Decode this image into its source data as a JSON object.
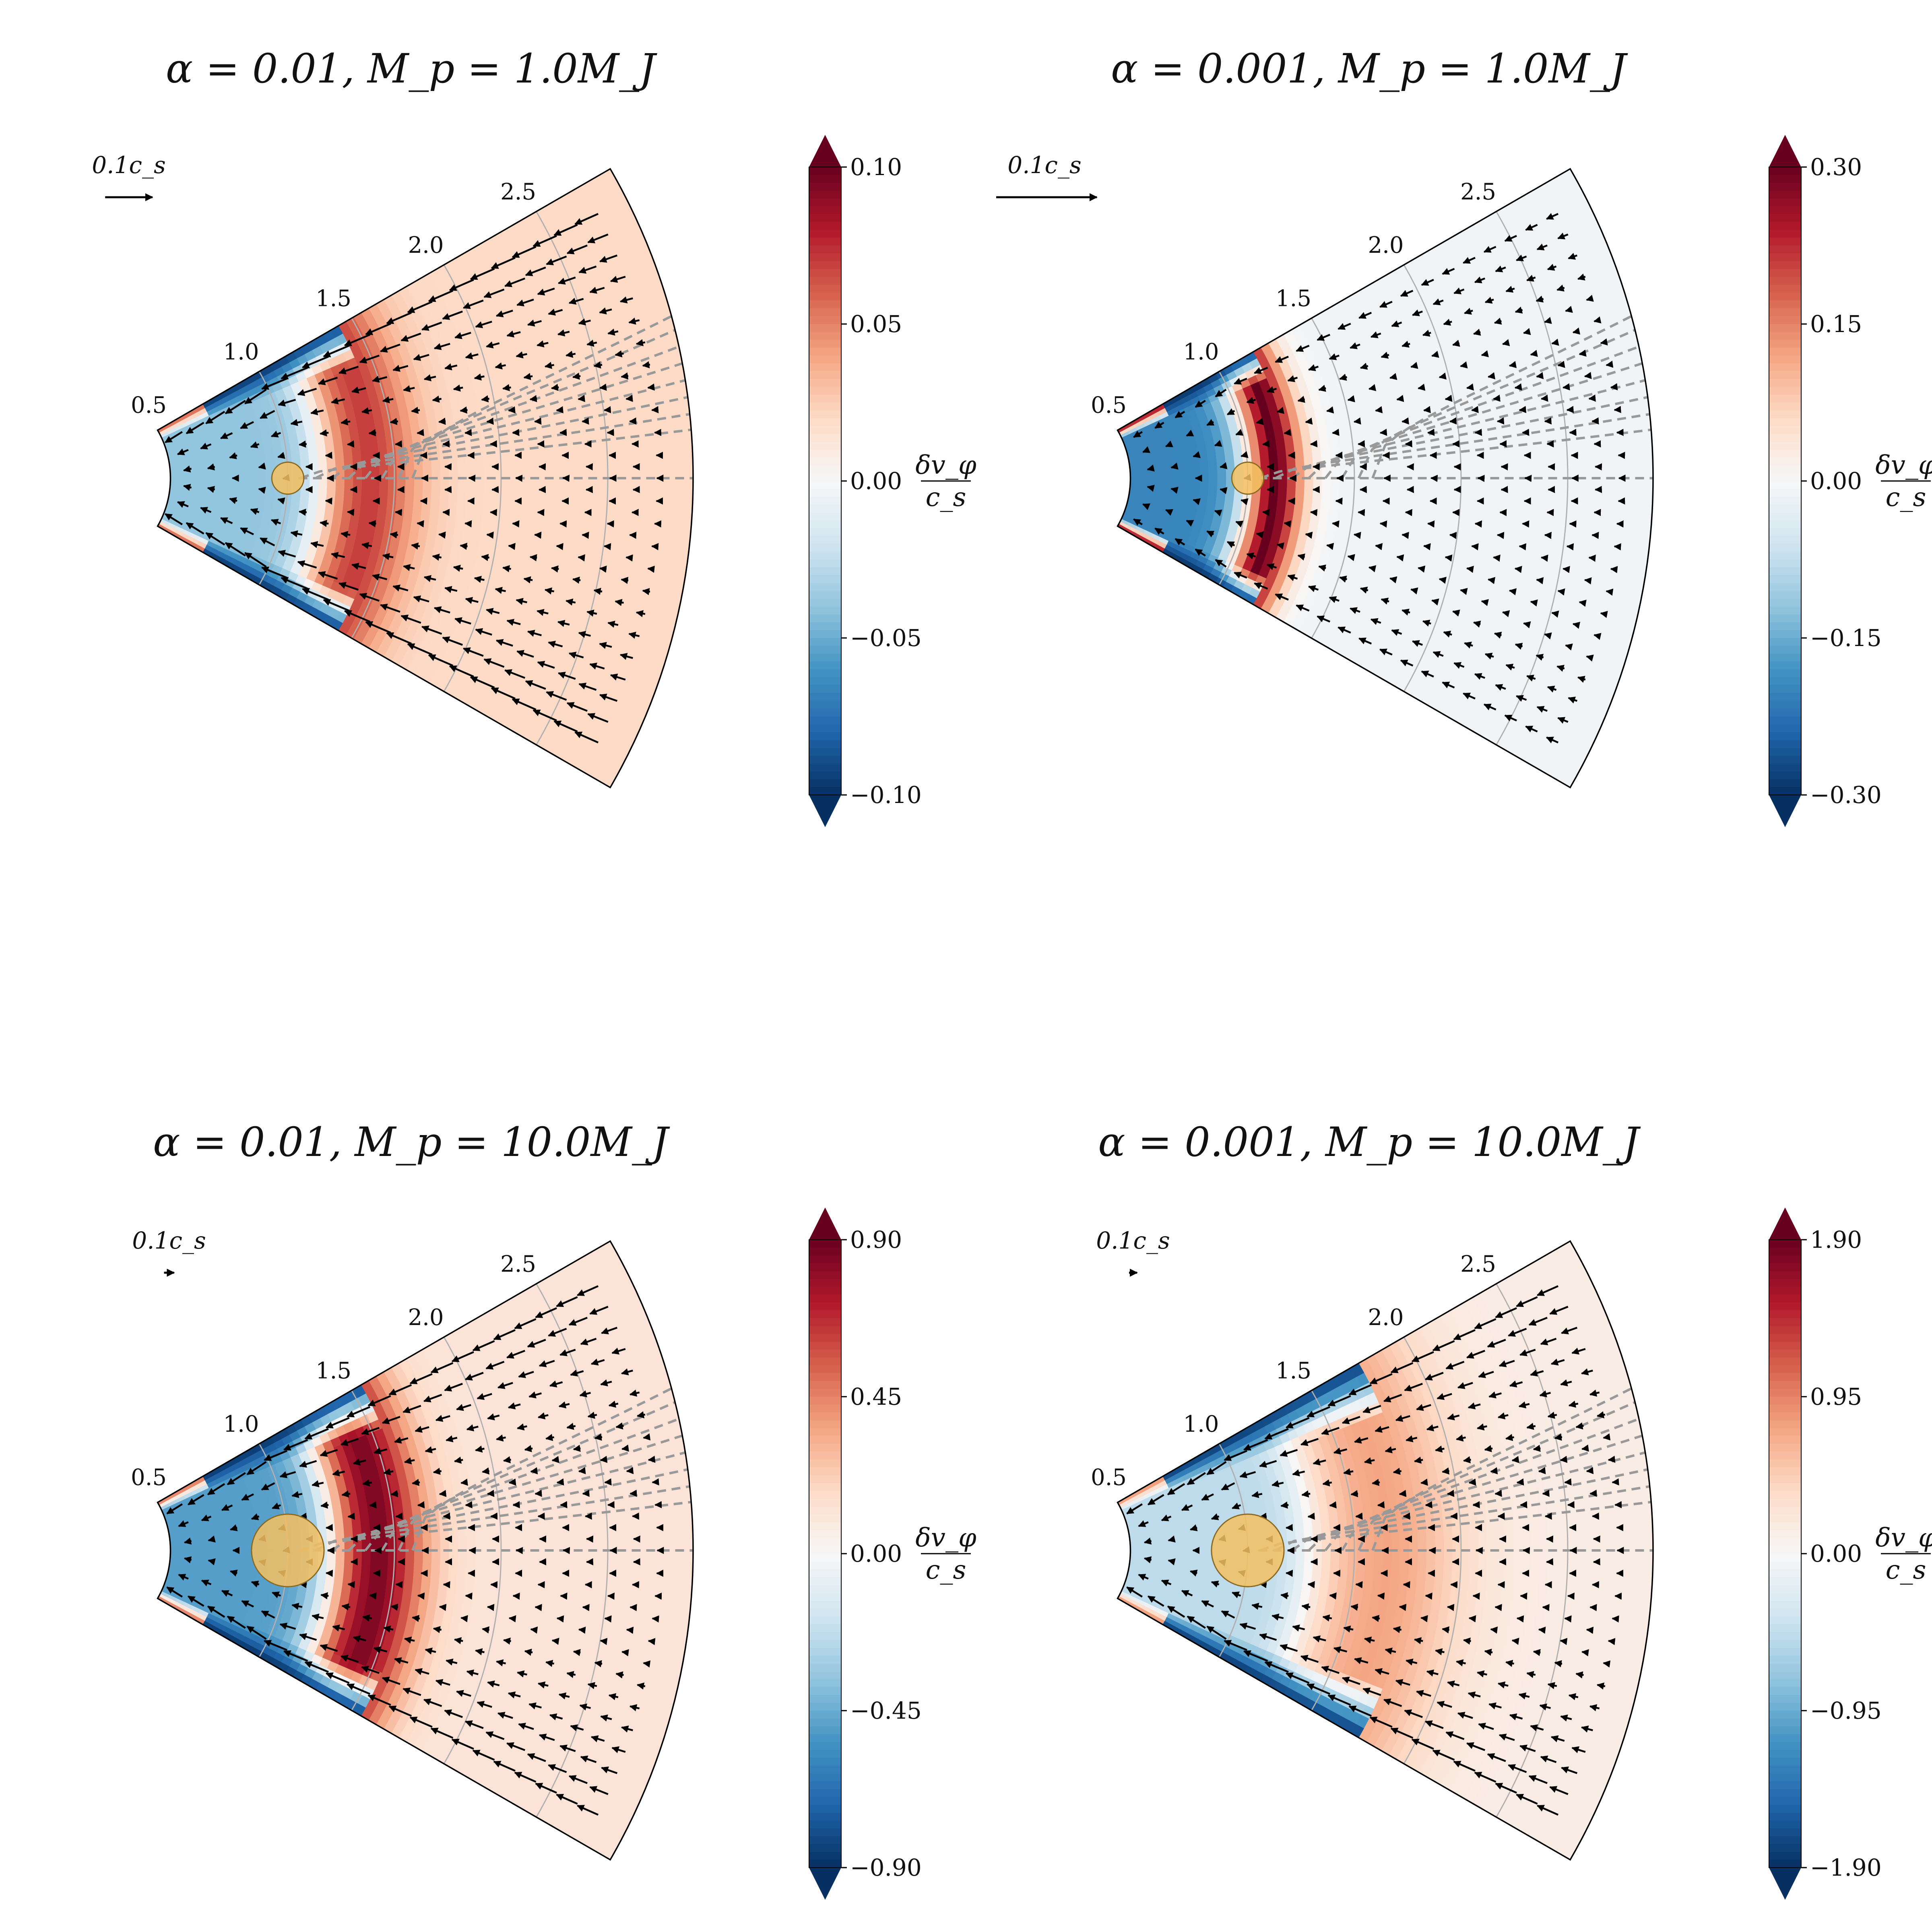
{
  "chart_data": [
    {
      "type": "heatmap",
      "title": "α = 0.01,  M_p = 1.0M_J",
      "subplot": "top-left",
      "radial_tick_labels": [
        "0.5",
        "1.0",
        "1.5",
        "2.0",
        "2.5"
      ],
      "colorbar": {
        "label_num": "δv_φ",
        "label_den": "c_s",
        "ticks": [
          "0.10",
          "0.05",
          "0.00",
          "−0.05",
          "−0.10"
        ],
        "range": [
          -0.1,
          0.1
        ],
        "colormap": "RdBu_r",
        "extend": "both"
      },
      "quiver_key_label": "0.1c_s",
      "planet": {
        "r": 1.0,
        "theta": 0.0,
        "color": "#f5c060"
      },
      "field": {
        "peak_pos": 0.07,
        "peak_r_center": 1.38,
        "peak_r_width": 0.22,
        "far_pos": 0.02,
        "neg_inner": -0.04,
        "edge_neg": -0.1,
        "edge_r_max": 1.45,
        "edge_pos_inner": 0.07
      },
      "arrows": {
        "style": "inflow-along-edges",
        "scale": 1.0
      }
    },
    {
      "type": "heatmap",
      "title": "α = 0.001,  M_p = 1.0M_J",
      "subplot": "top-right",
      "radial_tick_labels": [
        "0.5",
        "1.0",
        "1.5",
        "2.0",
        "2.5"
      ],
      "colorbar": {
        "label_num": "δv_φ",
        "label_den": "c_s",
        "ticks": [
          "0.30",
          "0.15",
          "0.00",
          "−0.15",
          "−0.30"
        ],
        "range": [
          -0.3,
          0.3
        ],
        "colormap": "RdBu_r",
        "extend": "both"
      },
      "quiver_key_label": "0.1c_s",
      "planet": {
        "r": 1.0,
        "theta": 0.0,
        "color": "#f5c060"
      },
      "field": {
        "peak_pos": 0.3,
        "peak_r_center": 1.12,
        "peak_r_width": 0.14,
        "far_pos": -0.01,
        "neg_inner": -0.2,
        "edge_neg": -0.3,
        "edge_r_max": 1.2,
        "edge_pos_inner": 0.3
      },
      "arrows": {
        "style": "weak-inflow",
        "scale": 0.5
      }
    },
    {
      "type": "heatmap",
      "title": "α = 0.01,  M_p = 10.0M_J",
      "subplot": "bottom-left",
      "radial_tick_labels": [
        "0.5",
        "1.0",
        "1.5",
        "2.0",
        "2.5"
      ],
      "colorbar": {
        "label_num": "δv_φ",
        "label_den": "c_s",
        "ticks": [
          "0.90",
          "0.45",
          "0.00",
          "−0.45",
          "−0.90"
        ],
        "range": [
          -0.9,
          0.9
        ],
        "colormap": "RdBu_r",
        "extend": "both"
      },
      "quiver_key_label": "0.1c_s",
      "planet": {
        "r": 1.0,
        "theta": 0.0,
        "color": "#f5c060"
      },
      "field": {
        "peak_pos": 0.85,
        "peak_r_center": 1.42,
        "peak_r_width": 0.22,
        "far_pos": 0.12,
        "neg_inner": -0.5,
        "edge_neg": -0.9,
        "edge_r_max": 1.55,
        "edge_pos_inner": 0.6
      },
      "arrows": {
        "style": "inflow",
        "scale": 0.9
      }
    },
    {
      "type": "heatmap",
      "title": "α = 0.001,  M_p = 10.0M_J",
      "subplot": "bottom-right",
      "radial_tick_labels": [
        "0.5",
        "1.0",
        "1.5",
        "2.0",
        "2.5"
      ],
      "colorbar": {
        "label_num": "δv_φ",
        "label_den": "c_s",
        "ticks": [
          "1.90",
          "0.95",
          "0.00",
          "−0.95",
          "−1.90"
        ],
        "range": [
          -1.9,
          1.9
        ],
        "colormap": "RdBu_r",
        "extend": "both"
      },
      "quiver_key_label": "0.1c_s",
      "planet": {
        "r": 1.0,
        "theta": 0.0,
        "color": "#f5c060"
      },
      "field": {
        "peak_pos": 0.75,
        "peak_r_center": 1.65,
        "peak_r_width": 0.35,
        "far_pos": 0.15,
        "neg_inner": -0.5,
        "edge_neg": -1.9,
        "edge_r_max": 1.75,
        "edge_pos_inner": 1.0
      },
      "arrows": {
        "style": "inflow",
        "scale": 0.9
      }
    }
  ]
}
